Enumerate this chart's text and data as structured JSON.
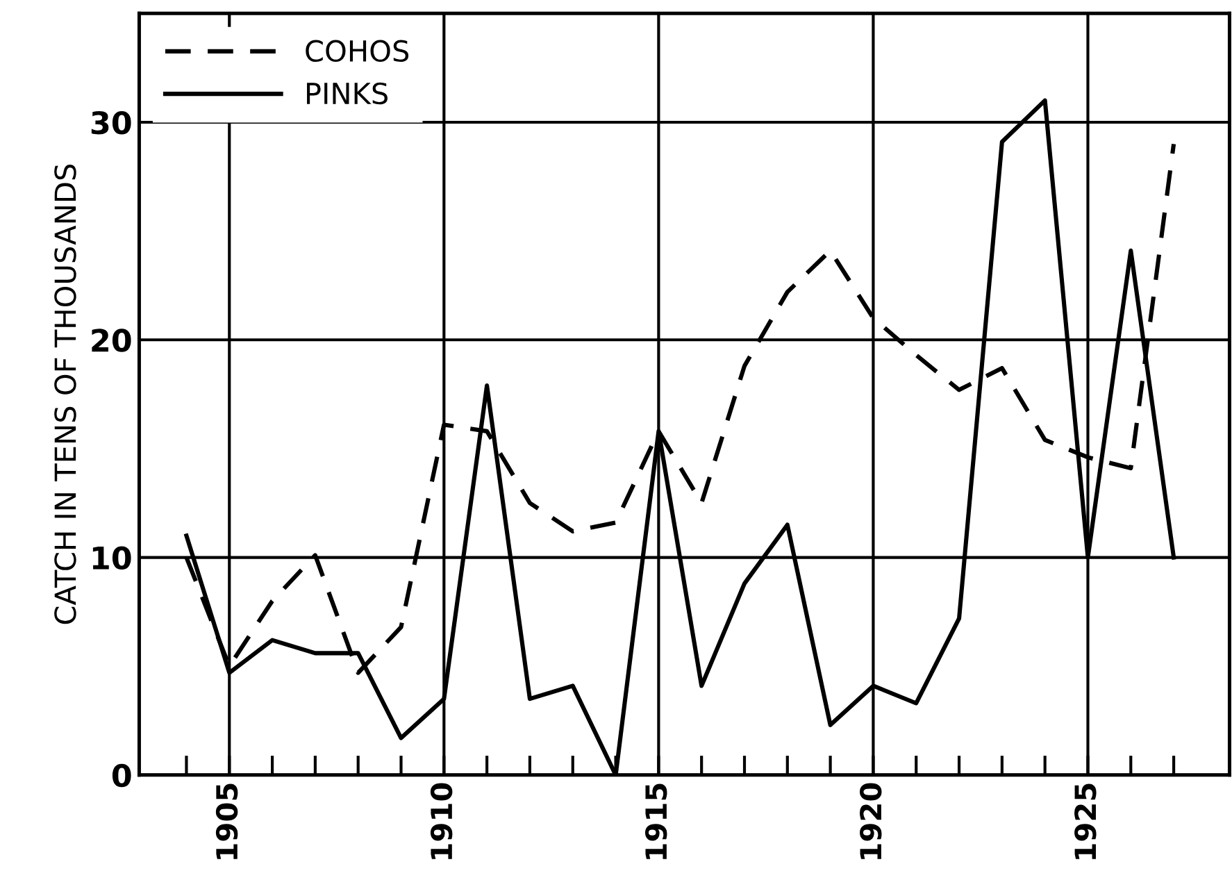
{
  "chart_data": {
    "type": "line",
    "ylabel": "CATCH IN TENS OF THOUSANDS",
    "x": [
      1904,
      1905,
      1906,
      1907,
      1908,
      1909,
      1910,
      1911,
      1912,
      1913,
      1914,
      1915,
      1916,
      1917,
      1918,
      1919,
      1920,
      1921,
      1922,
      1923,
      1924,
      1925,
      1926,
      1927
    ],
    "series": [
      {
        "name": "COHOS",
        "color": "#000000",
        "line_style": "dashed",
        "values": [
          10,
          5,
          8,
          10.1,
          4.7,
          6.8,
          16.1,
          15.8,
          12.5,
          11.2,
          11.6,
          15.8,
          12.5,
          18.8,
          22.2,
          24.1,
          21,
          19.3,
          17.7,
          18.7,
          15.4,
          14.6,
          14.1,
          29
        ]
      },
      {
        "name": "PINKS",
        "color": "#000000",
        "line_style": "solid",
        "values": [
          11,
          4.7,
          6.2,
          5.6,
          5.6,
          1.7,
          3.5,
          17.9,
          3.5,
          4.1,
          0,
          15.8,
          4.1,
          8.8,
          11.5,
          2.3,
          4.1,
          3.3,
          7.2,
          29.1,
          31,
          10,
          24.1,
          10
        ]
      }
    ],
    "xlim": [
      1902.9,
      1928.3
    ],
    "ylim": [
      0,
      35
    ],
    "xticks": [
      {
        "value": 1904,
        "label": null
      },
      1905,
      {
        "value": 1906,
        "label": null
      },
      {
        "value": 1907,
        "label": null
      },
      {
        "value": 1908,
        "label": null
      },
      {
        "value": 1909,
        "label": null
      },
      1910,
      {
        "value": 1911,
        "label": null
      },
      {
        "value": 1912,
        "label": null
      },
      {
        "value": 1913,
        "label": null
      },
      {
        "value": 1914,
        "label": null
      },
      1915,
      {
        "value": 1916,
        "label": null
      },
      {
        "value": 1917,
        "label": null
      },
      {
        "value": 1918,
        "label": null
      },
      {
        "value": 1919,
        "label": null
      },
      1920,
      {
        "value": 1921,
        "label": null
      },
      {
        "value": 1922,
        "label": null
      },
      {
        "value": 1923,
        "label": null
      },
      {
        "value": 1924,
        "label": null
      },
      1925,
      {
        "value": 1926,
        "label": null
      },
      {
        "value": 1927,
        "label": null
      }
    ],
    "yticks": [
      0,
      10,
      20,
      30
    ],
    "grid": true,
    "legend": "top left",
    "marker": "none"
  }
}
